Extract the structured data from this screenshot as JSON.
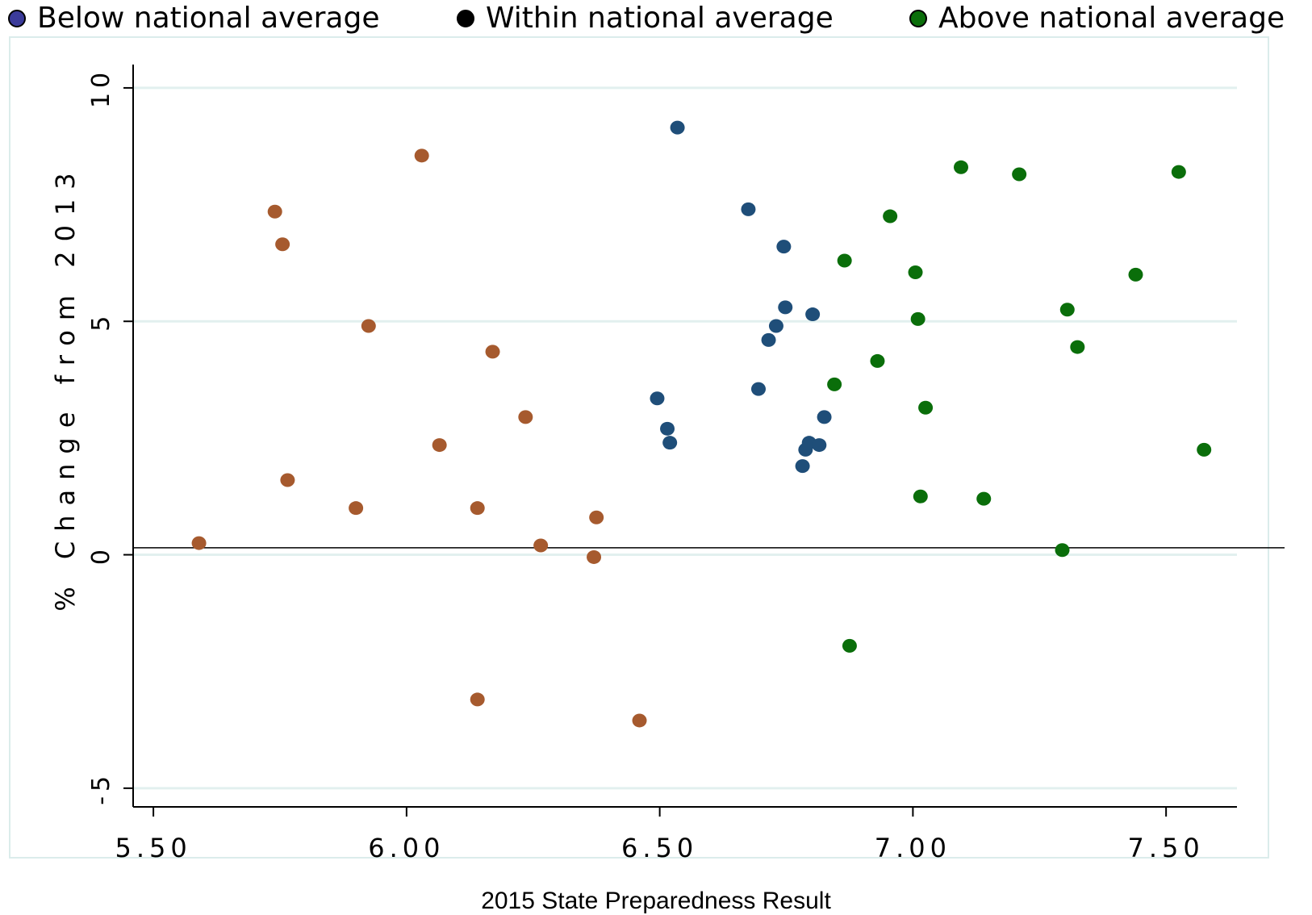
{
  "legend": {
    "items": [
      {
        "label": "Below national average",
        "color": "#3b3b9a",
        "icon": "circle-marker"
      },
      {
        "label": "Within national average",
        "color": "#000000",
        "icon": "circle-marker"
      },
      {
        "label": "Above national average",
        "color": "#0a6e0a",
        "icon": "circle-marker"
      }
    ]
  },
  "chart_data": {
    "type": "scatter",
    "title": "",
    "xlabel": "2015 State Preparedness Result",
    "ylabel": "% Change from 2013",
    "xlim": [
      5.46,
      7.64
    ],
    "ylim": [
      -5.4,
      10.5
    ],
    "xticks": [
      "5.50",
      "6.00",
      "6.50",
      "7.00",
      "7.50"
    ],
    "xtick_values": [
      5.5,
      6.0,
      6.5,
      7.0,
      7.5
    ],
    "yticks": [
      "-5",
      "0",
      "5",
      "10"
    ],
    "ytick_values": [
      -5,
      0,
      5,
      10
    ],
    "reference_line_y": 0.15,
    "grid": "horizontal",
    "series": [
      {
        "color": "#a65a2e",
        "points": [
          [
            5.59,
            0.25
          ],
          [
            5.74,
            7.35
          ],
          [
            5.755,
            6.65
          ],
          [
            5.765,
            1.6
          ],
          [
            5.9,
            1.0
          ],
          [
            5.925,
            4.9
          ],
          [
            6.03,
            8.55
          ],
          [
            6.065,
            2.35
          ],
          [
            6.14,
            1.0
          ],
          [
            6.14,
            -3.1
          ],
          [
            6.17,
            4.35
          ],
          [
            6.235,
            2.95
          ],
          [
            6.265,
            0.2
          ],
          [
            6.37,
            -0.05
          ],
          [
            6.375,
            0.8
          ],
          [
            6.46,
            -3.55
          ]
        ]
      },
      {
        "color": "#1f4e79",
        "points": [
          [
            6.495,
            3.35
          ],
          [
            6.515,
            2.7
          ],
          [
            6.52,
            2.4
          ],
          [
            6.535,
            9.15
          ],
          [
            6.675,
            7.4
          ],
          [
            6.695,
            3.55
          ],
          [
            6.715,
            4.6
          ],
          [
            6.73,
            4.9
          ],
          [
            6.745,
            6.6
          ],
          [
            6.748,
            5.3
          ],
          [
            6.782,
            1.9
          ],
          [
            6.788,
            2.25
          ],
          [
            6.795,
            2.4
          ],
          [
            6.802,
            5.15
          ],
          [
            6.815,
            2.35
          ],
          [
            6.825,
            2.95
          ]
        ]
      },
      {
        "color": "#0a6e0a",
        "points": [
          [
            6.845,
            3.65
          ],
          [
            6.865,
            6.3
          ],
          [
            6.875,
            -1.95
          ],
          [
            6.93,
            4.15
          ],
          [
            6.955,
            7.25
          ],
          [
            7.005,
            6.05
          ],
          [
            7.01,
            5.05
          ],
          [
            7.015,
            1.25
          ],
          [
            7.025,
            3.15
          ],
          [
            7.095,
            8.3
          ],
          [
            7.14,
            1.2
          ],
          [
            7.21,
            8.15
          ],
          [
            7.295,
            0.1
          ],
          [
            7.305,
            5.25
          ],
          [
            7.325,
            4.45
          ],
          [
            7.44,
            6.0
          ],
          [
            7.525,
            8.2
          ],
          [
            7.575,
            2.25
          ]
        ]
      }
    ]
  }
}
